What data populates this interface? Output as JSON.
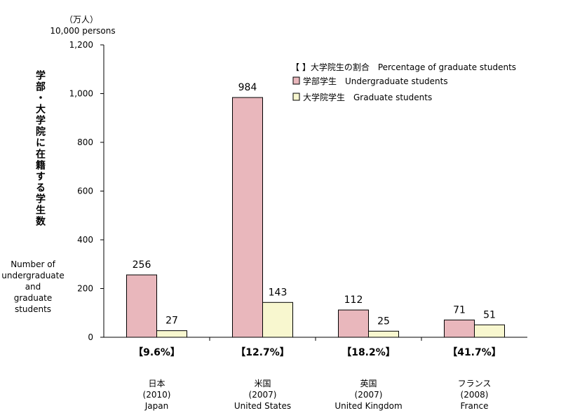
{
  "chart_data": {
    "type": "bar",
    "unit_label_jp": "（万人）",
    "unit_label_en": "10,000 persons",
    "ylabel_jp": "学部・大学院に在籍する学生数",
    "ylabel_en": "Number of undergraduate and graduate students",
    "ylabel_en_lines": [
      "Number of",
      "undergraduate",
      "and",
      "graduate",
      "students"
    ],
    "ylim": [
      0,
      1200
    ],
    "yticks": [
      0,
      200,
      400,
      600,
      800,
      1000,
      1200
    ],
    "ytick_labels": [
      "0",
      "200",
      "400",
      "600",
      "800",
      "1,000",
      "1,200"
    ],
    "grid": false,
    "legend_placement": "top-right",
    "legend_note": "【 】大学院生の割合　Percentage of graduate students",
    "categories": [
      {
        "name_jp": "日本",
        "year": "(2010)",
        "name_en": "Japan",
        "graduate_share": "【9.6%】"
      },
      {
        "name_jp": "米国",
        "year": "(2007)",
        "name_en": "United States",
        "graduate_share": "【12.7%】"
      },
      {
        "name_jp": "英国",
        "year": "(2007)",
        "name_en": "United Kingdom",
        "graduate_share": "【18.2%】"
      },
      {
        "name_jp": "フランス",
        "year": "(2008)",
        "name_en": "France",
        "graduate_share": "【41.7%】"
      }
    ],
    "series": [
      {
        "name": "学部学生　Undergraduate students",
        "color": "#e9b7bc",
        "values": [
          256,
          984,
          112,
          71
        ]
      },
      {
        "name": "大学院学生　Graduate students",
        "color": "#f8f7cf",
        "values": [
          27,
          143,
          25,
          51
        ]
      }
    ]
  }
}
